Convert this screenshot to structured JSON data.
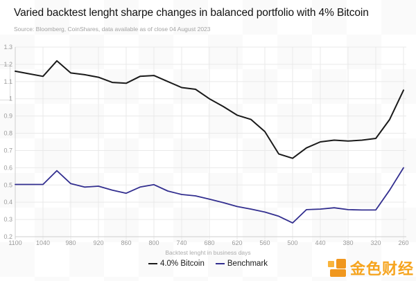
{
  "header": {
    "title": "Varied backtest lenght sharpe changes in balanced portfolio with 4% Bitcoin",
    "source": "Source: Bloomberg, CoinShares, data available as of close 04 August 2023"
  },
  "chart_data": {
    "type": "line",
    "title": "Varied backtest lenght sharpe changes in balanced portfolio with 4% Bitcoin",
    "xlabel": "Backtest lenght in business days",
    "ylabel": "",
    "x_reversed": true,
    "grid": true,
    "legend_position": "bottom-center",
    "ylim": [
      0.2,
      1.3
    ],
    "x": [
      1100,
      1070,
      1040,
      1010,
      980,
      950,
      920,
      890,
      860,
      830,
      800,
      770,
      740,
      710,
      680,
      650,
      620,
      590,
      560,
      530,
      500,
      470,
      440,
      410,
      380,
      350,
      320,
      290,
      260
    ],
    "x_tick_labels": [
      "1100",
      "1040",
      "980",
      "920",
      "860",
      "800",
      "740",
      "680",
      "620",
      "560",
      "500",
      "440",
      "380",
      "320",
      "260"
    ],
    "y_tick_labels": [
      "1.3",
      "1.2",
      "1.1",
      "1",
      "0.9",
      "0.8",
      "0.7",
      "0.6",
      "0.5",
      "0.4",
      "0.3",
      "0.2"
    ],
    "series": [
      {
        "name": "4.0% Bitcoin",
        "color": "#1a1a1a",
        "values": [
          1.16,
          1.145,
          1.13,
          1.22,
          1.15,
          1.14,
          1.125,
          1.095,
          1.09,
          1.13,
          1.135,
          1.1,
          1.065,
          1.055,
          1.0,
          0.955,
          0.905,
          0.88,
          0.81,
          0.68,
          0.655,
          0.715,
          0.75,
          0.76,
          0.755,
          0.76,
          0.77,
          0.88,
          1.05
        ]
      },
      {
        "name": "Benchmark",
        "color": "#322e8f",
        "values": [
          0.503,
          0.503,
          0.503,
          0.583,
          0.508,
          0.488,
          0.493,
          0.47,
          0.452,
          0.488,
          0.502,
          0.465,
          0.445,
          0.437,
          0.418,
          0.398,
          0.375,
          0.36,
          0.343,
          0.319,
          0.28,
          0.357,
          0.36,
          0.368,
          0.357,
          0.355,
          0.355,
          0.47,
          0.6
        ]
      }
    ]
  },
  "colors": {
    "gridline": "#e9e9e9",
    "axis": "#cfcfcf",
    "tick_text": "#9a9a9a"
  },
  "watermark": {
    "text": "金色财经",
    "color": "#f6a41e",
    "icon": "jinse-blocks-icon",
    "icon_colors": [
      "#f9b43c",
      "#f0971e"
    ]
  }
}
